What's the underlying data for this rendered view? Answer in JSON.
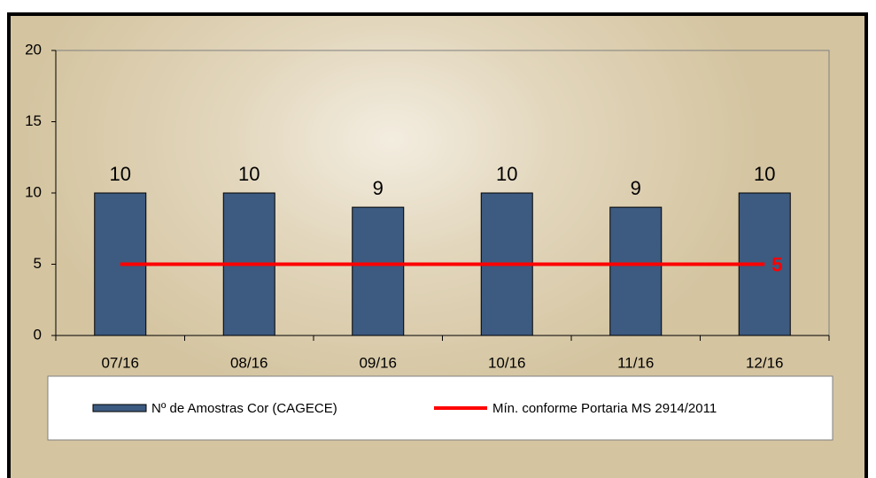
{
  "chart_data": {
    "type": "bar",
    "categories": [
      "07/16",
      "08/16",
      "09/16",
      "10/16",
      "11/16",
      "12/16"
    ],
    "series": [
      {
        "name": "Nº de Amostras Cor (CAGECE)",
        "type": "bar",
        "color": "#3d5a80",
        "values": [
          10,
          10,
          9,
          10,
          9,
          10
        ],
        "data_labels": "all"
      },
      {
        "name": "Mín. conforme Portaria MS 2914/2011",
        "type": "line",
        "color": "#ff0000",
        "values": [
          5,
          5,
          5,
          5,
          5,
          5
        ],
        "data_labels": "last"
      }
    ],
    "ylim": [
      0,
      20
    ],
    "yticks": [
      0,
      5,
      10,
      15,
      20
    ],
    "grid": false,
    "legend": "bottom"
  }
}
